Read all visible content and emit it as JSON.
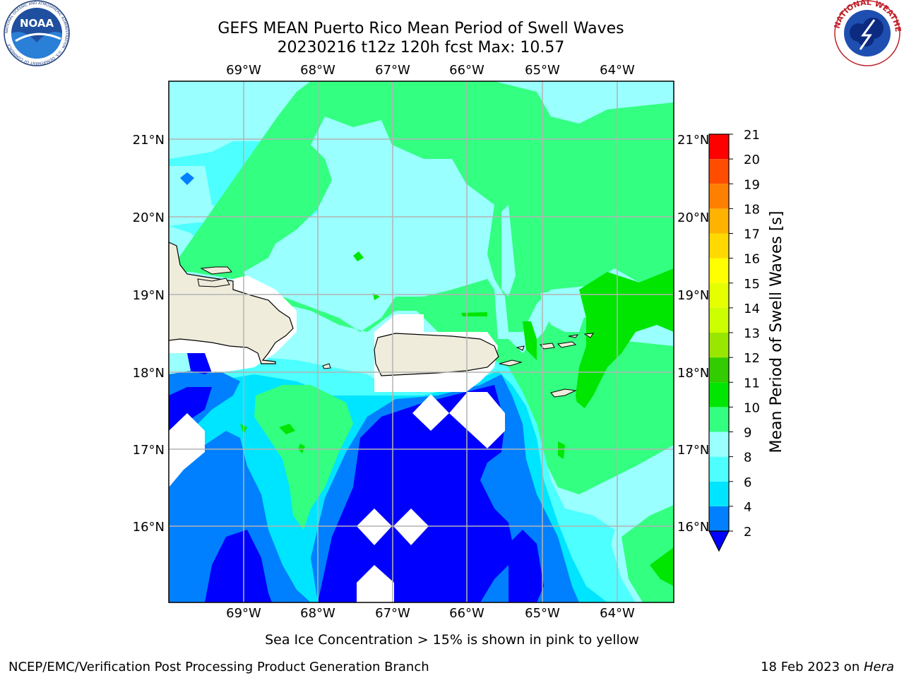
{
  "title_line1": "GEFS MEAN Puerto Rico Mean Period of Swell Waves",
  "title_line2": "20230216 t12z 120h fcst   Max: 10.57",
  "colorbar": {
    "label": "Mean Period of Swell Waves [s]",
    "ticks": [
      "2",
      "4",
      "6",
      "8",
      "9",
      "10",
      "11",
      "12",
      "13",
      "14",
      "15",
      "16",
      "17",
      "18",
      "19",
      "20",
      "21"
    ],
    "colors": [
      "#0000ff",
      "#0080ff",
      "#00e5ff",
      "#4dffff",
      "#99ffff",
      "#33ff80",
      "#00e600",
      "#33cc00",
      "#99e600",
      "#ccff00",
      "#e5ff00",
      "#ffff00",
      "#ffd900",
      "#ffb300",
      "#ff8000",
      "#ff4d00",
      "#ff0000"
    ]
  },
  "lon_labels": [
    "69°W",
    "68°W",
    "67°W",
    "66°W",
    "65°W",
    "64°W"
  ],
  "lat_labels": [
    "21°N",
    "20°N",
    "19°N",
    "18°N",
    "17°N",
    "16°N"
  ],
  "footer_note": "Sea Ice Concentration > 15% is shown in pink to yellow",
  "credit_left": "NCEP/EMC/Verification Post Processing Product Generation Branch",
  "credit_right_date": "18 Feb 2023 on ",
  "credit_right_system": "Hera",
  "logos": {
    "left": "noaa-logo",
    "right": "nws-logo",
    "left_ring_text": "NATIONAL OCEANIC AND ATMOSPHERIC ADMINISTRATION · U.S. DEPARTMENT OF COMMERCE",
    "right_ring_text": "NATIONAL WEATHER SERVICE",
    "left_center_text": "NOAA"
  },
  "legend_colors": {
    "land": "#efecdc",
    "grid": "#b4b4b4"
  }
}
